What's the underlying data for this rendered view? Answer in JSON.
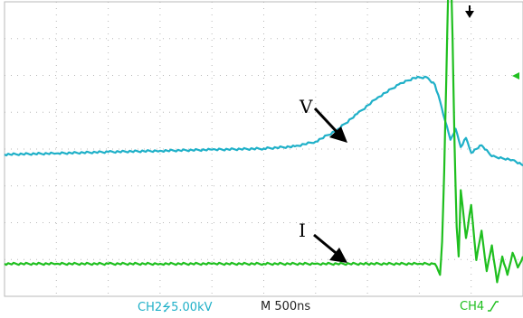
{
  "scope": {
    "grid_color": "#b8b8b8",
    "background": "#ffffff"
  },
  "status_bar": {
    "ch2_text": "CH2",
    "ch2_scale": "5.00kV",
    "timebase": "M 500ns",
    "ch4_text": "CH4",
    "ch2_color": "#1fb0c8",
    "ch4_color": "#1fbf1f"
  },
  "annotations": {
    "v_label": "V",
    "i_label": "I"
  },
  "chart_data": {
    "type": "line",
    "title": "",
    "xlabel": "",
    "ylabel": "",
    "x_unit": "ns",
    "x_per_div": 500,
    "grid": true,
    "xlim": [
      0,
      5000
    ],
    "series": [
      {
        "name": "V",
        "color": "#1fb0c8",
        "x": [
          0,
          500,
          1000,
          1500,
          2000,
          2500,
          2800,
          3000,
          3200,
          3400,
          3600,
          3800,
          3950,
          4070,
          4150,
          4200,
          4250,
          4300,
          4350,
          4400,
          4450,
          4500,
          4600,
          4700,
          4800,
          4900,
          5000
        ],
        "y": [
          0,
          0.03,
          0.07,
          0.1,
          0.13,
          0.16,
          0.22,
          0.35,
          0.65,
          1.1,
          1.55,
          1.9,
          2.08,
          2.1,
          1.9,
          1.45,
          0.9,
          0.4,
          0.7,
          0.2,
          0.45,
          0.05,
          0.25,
          -0.05,
          -0.1,
          -0.15,
          -0.3
        ]
      },
      {
        "name": "I",
        "color": "#1fbf1f",
        "x": [
          0,
          500,
          1000,
          1500,
          2000,
          2500,
          3000,
          3500,
          4000,
          4150,
          4200,
          4220,
          4240,
          4260,
          4280,
          4300,
          4320,
          4340,
          4360,
          4380,
          4400,
          4450,
          4500,
          4550,
          4600,
          4650,
          4700,
          4750,
          4800,
          4850,
          4900,
          4950,
          5000
        ],
        "y": [
          0,
          0,
          0,
          0,
          0,
          0,
          0,
          0,
          0,
          0,
          -0.3,
          0.6,
          2.5,
          5.0,
          7.6,
          8.6,
          6.2,
          3.2,
          1.0,
          0.2,
          2.0,
          0.7,
          1.6,
          0.1,
          0.9,
          -0.2,
          0.5,
          -0.5,
          0.2,
          -0.3,
          0.3,
          -0.1,
          0.2
        ]
      }
    ]
  }
}
